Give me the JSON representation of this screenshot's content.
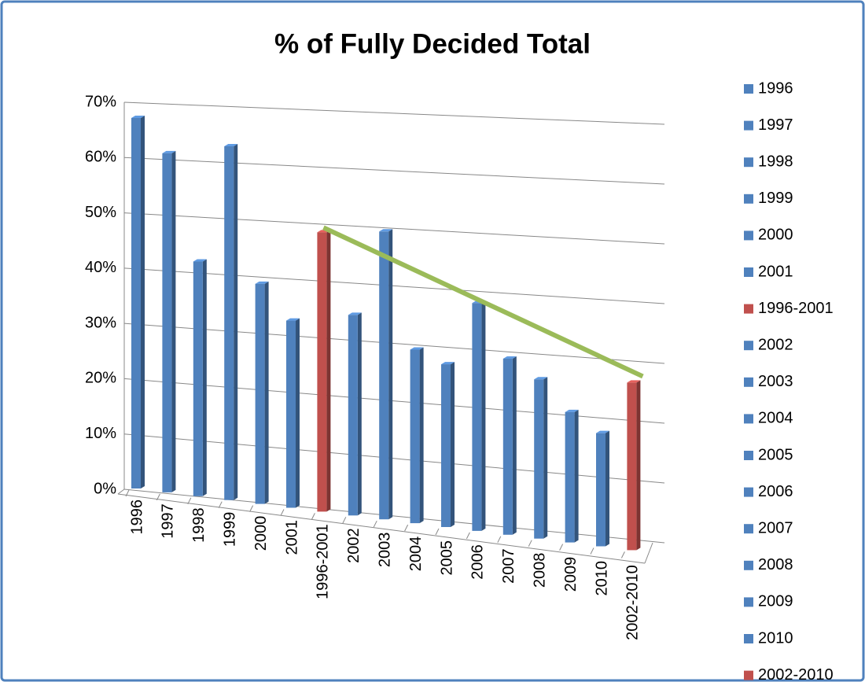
{
  "chart_data": {
    "type": "bar3d",
    "title": "% of Fully Decided Total",
    "categories": [
      "1996",
      "1997",
      "1998",
      "1999",
      "2000",
      "2001",
      "1996-2001",
      "2002",
      "2003",
      "2004",
      "2005",
      "2006",
      "2007",
      "2008",
      "2009",
      "2010",
      "2002-2010"
    ],
    "values": [
      67,
      61,
      42,
      63,
      39,
      33,
      49,
      35,
      50,
      30,
      28,
      39,
      30,
      27,
      22,
      19,
      28
    ],
    "colors": [
      "#4f81bd",
      "#4f81bd",
      "#4f81bd",
      "#4f81bd",
      "#4f81bd",
      "#4f81bd",
      "#c0504d",
      "#4f81bd",
      "#4f81bd",
      "#4f81bd",
      "#4f81bd",
      "#4f81bd",
      "#4f81bd",
      "#4f81bd",
      "#4f81bd",
      "#4f81bd",
      "#c0504d"
    ],
    "ylim": [
      0,
      70
    ],
    "yticks": [
      {
        "value": 0,
        "label": "0%"
      },
      {
        "value": 10,
        "label": "10%"
      },
      {
        "value": 20,
        "label": "20%"
      },
      {
        "value": 30,
        "label": "30%"
      },
      {
        "value": 40,
        "label": "40%"
      },
      {
        "value": 50,
        "label": "50%"
      },
      {
        "value": 60,
        "label": "60%"
      },
      {
        "value": 70,
        "label": "70%"
      }
    ],
    "grid": true,
    "legend": "right"
  }
}
